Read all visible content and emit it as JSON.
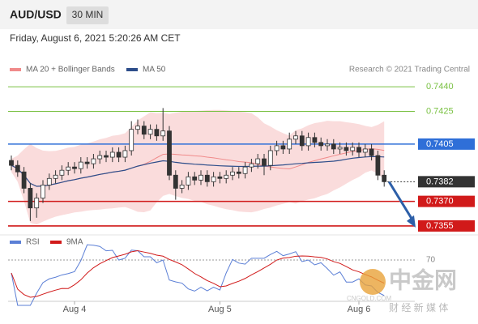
{
  "chart_data": {
    "type": "candlestick",
    "symbol": "AUD/USD",
    "timeframe": "30 MIN",
    "timestamp": "Friday, August 6, 2021 5:20:26 AM CET",
    "source": "Research © 2021 Trading Central",
    "legend": [
      {
        "name": "MA 20 + Bollinger Bands",
        "color": "#f08a8a"
      },
      {
        "name": "MA 50",
        "color": "#2d4d8a"
      }
    ],
    "up_color": "#ffffff",
    "down_color": "#333333",
    "ylim": [
      0.7352,
      0.7446
    ],
    "levels": [
      {
        "value": 0.744,
        "label": "0.7440",
        "color": "#7ac143",
        "style": "text"
      },
      {
        "value": 0.7425,
        "label": "0.7425",
        "color": "#7ac143",
        "style": "text"
      },
      {
        "value": 0.7405,
        "label": "0.7405",
        "color": "#2f6fd8",
        "style": "box"
      },
      {
        "value": 0.7382,
        "label": "0.7382",
        "color": "#333333",
        "style": "box-dotted"
      },
      {
        "value": 0.737,
        "label": "0.7370",
        "color": "#d11a1a",
        "style": "box"
      },
      {
        "value": 0.7355,
        "label": "0.7355",
        "color": "#d11a1a",
        "style": "box"
      }
    ],
    "categories": [
      null,
      null,
      null,
      null,
      null,
      null,
      null,
      null,
      null,
      null,
      "Aug 4",
      null,
      null,
      null,
      null,
      null,
      null,
      null,
      null,
      null,
      null,
      null,
      null,
      null,
      null,
      null,
      null,
      null,
      null,
      null,
      null,
      null,
      null,
      "Aug 5",
      null,
      null,
      null,
      null,
      null,
      null,
      null,
      null,
      null,
      null,
      null,
      null,
      null,
      null,
      null,
      null,
      null,
      null,
      null,
      null,
      null,
      "Aug 6",
      null,
      null,
      null,
      null
    ],
    "candles": [
      [
        0.7395,
        0.7398,
        0.7389,
        0.7392
      ],
      [
        0.7392,
        0.7395,
        0.7385,
        0.7388
      ],
      [
        0.7388,
        0.7391,
        0.7375,
        0.7378
      ],
      [
        0.7378,
        0.7381,
        0.7358,
        0.7366
      ],
      [
        0.7366,
        0.7375,
        0.736,
        0.7372
      ],
      [
        0.7372,
        0.7383,
        0.7369,
        0.738
      ],
      [
        0.738,
        0.7387,
        0.7377,
        0.7384
      ],
      [
        0.7384,
        0.7389,
        0.7381,
        0.7386
      ],
      [
        0.7386,
        0.7392,
        0.7383,
        0.7389
      ],
      [
        0.7389,
        0.7394,
        0.7386,
        0.7391
      ],
      [
        0.7391,
        0.7394,
        0.7387,
        0.739
      ],
      [
        0.739,
        0.7397,
        0.7387,
        0.7394
      ],
      [
        0.7394,
        0.7397,
        0.739,
        0.7393
      ],
      [
        0.7393,
        0.7399,
        0.739,
        0.7396
      ],
      [
        0.7396,
        0.7401,
        0.7393,
        0.7398
      ],
      [
        0.7398,
        0.7401,
        0.7394,
        0.7397
      ],
      [
        0.7397,
        0.7403,
        0.7394,
        0.74
      ],
      [
        0.74,
        0.7403,
        0.7394,
        0.7397
      ],
      [
        0.7397,
        0.7404,
        0.7394,
        0.7401
      ],
      [
        0.7401,
        0.7419,
        0.7398,
        0.7414
      ],
      [
        0.7414,
        0.742,
        0.7411,
        0.7416
      ],
      [
        0.7416,
        0.7419,
        0.7408,
        0.7411
      ],
      [
        0.7411,
        0.7417,
        0.7408,
        0.7414
      ],
      [
        0.7414,
        0.7417,
        0.7407,
        0.741
      ],
      [
        0.741,
        0.7427,
        0.7407,
        0.7413
      ],
      [
        0.7413,
        0.7416,
        0.7383,
        0.7386
      ],
      [
        0.7386,
        0.7389,
        0.7371,
        0.7378
      ],
      [
        0.7378,
        0.7383,
        0.7375,
        0.738
      ],
      [
        0.738,
        0.7388,
        0.7377,
        0.7385
      ],
      [
        0.7385,
        0.7388,
        0.738,
        0.7383
      ],
      [
        0.7383,
        0.7389,
        0.738,
        0.7386
      ],
      [
        0.7386,
        0.7389,
        0.7379,
        0.7382
      ],
      [
        0.7382,
        0.7388,
        0.7379,
        0.7385
      ],
      [
        0.7385,
        0.7388,
        0.7381,
        0.7384
      ],
      [
        0.7384,
        0.7389,
        0.7381,
        0.7386
      ],
      [
        0.7386,
        0.7391,
        0.7383,
        0.7388
      ],
      [
        0.7388,
        0.7391,
        0.7384,
        0.7387
      ],
      [
        0.7387,
        0.7394,
        0.7384,
        0.7391
      ],
      [
        0.7391,
        0.7396,
        0.7388,
        0.7393
      ],
      [
        0.7393,
        0.7399,
        0.739,
        0.7396
      ],
      [
        0.7396,
        0.7399,
        0.7386,
        0.7392
      ],
      [
        0.7392,
        0.7404,
        0.7389,
        0.7401
      ],
      [
        0.7401,
        0.7407,
        0.7398,
        0.7404
      ],
      [
        0.7404,
        0.7407,
        0.7399,
        0.7402
      ],
      [
        0.7402,
        0.7412,
        0.7399,
        0.7408
      ],
      [
        0.7408,
        0.7413,
        0.7405,
        0.741
      ],
      [
        0.741,
        0.7413,
        0.7401,
        0.7404
      ],
      [
        0.7404,
        0.7412,
        0.7401,
        0.7409
      ],
      [
        0.7409,
        0.7412,
        0.7403,
        0.7406
      ],
      [
        0.7406,
        0.7409,
        0.7401,
        0.7404
      ],
      [
        0.7404,
        0.7408,
        0.7401,
        0.7405
      ],
      [
        0.7405,
        0.7408,
        0.7399,
        0.7402
      ],
      [
        0.7402,
        0.7406,
        0.7399,
        0.7403
      ],
      [
        0.7403,
        0.7406,
        0.7398,
        0.7401
      ],
      [
        0.7401,
        0.7406,
        0.7398,
        0.7403
      ],
      [
        0.7403,
        0.7406,
        0.7397,
        0.74
      ],
      [
        0.74,
        0.7405,
        0.7397,
        0.7402
      ],
      [
        0.7402,
        0.7405,
        0.7395,
        0.7398
      ],
      [
        0.7398,
        0.7401,
        0.7383,
        0.7386
      ],
      [
        0.7386,
        0.7389,
        0.7379,
        0.7382
      ]
    ],
    "rsi_legend": [
      {
        "name": "RSI",
        "color": "#5b7fd6"
      },
      {
        "name": "9MA",
        "color": "#d11a1a"
      }
    ],
    "rsi_ylim": [
      0,
      100
    ],
    "rsi_yticks": [
      70
    ],
    "watermark": {
      "name": "中金网",
      "url": "CNGOLD.COM",
      "slogan": "财 经 新 媒 体"
    }
  }
}
